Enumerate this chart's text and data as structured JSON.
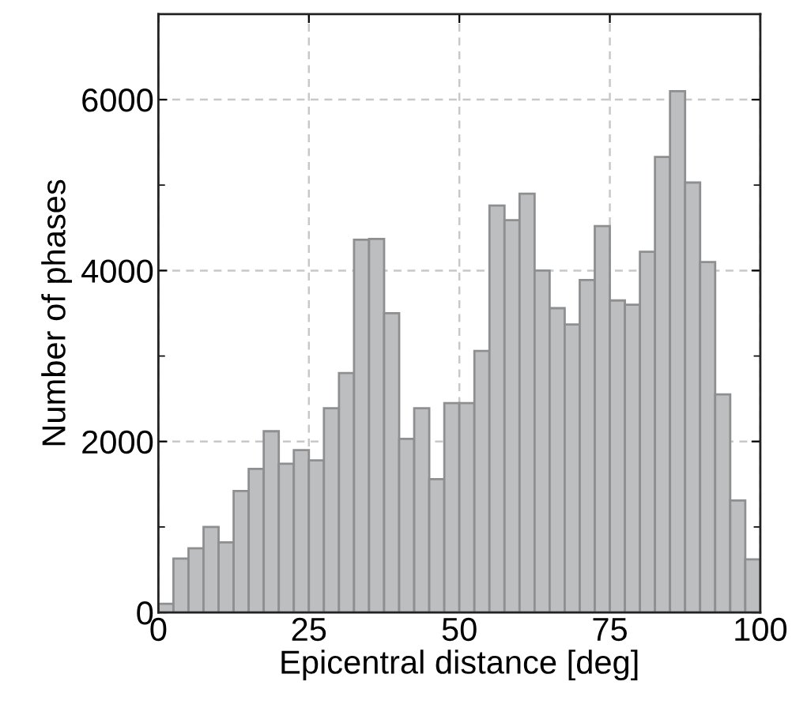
{
  "chart_data": {
    "type": "histogram",
    "xlabel": "Epicentral distance [deg]",
    "ylabel": "Number of phases",
    "bins": [
      0,
      2.5,
      5,
      7.5,
      10,
      12.5,
      15,
      17.5,
      20,
      22.5,
      25,
      27.5,
      30,
      32.5,
      35,
      37.5,
      40,
      42.5,
      45,
      47.5,
      50,
      52.5,
      55,
      57.5,
      60,
      62.5,
      65,
      67.5,
      70,
      72.5,
      75,
      77.5,
      80,
      82.5,
      85,
      87.5,
      90,
      92.5,
      95,
      97.5,
      100
    ],
    "values": [
      100,
      630,
      750,
      1000,
      820,
      1420,
      1680,
      2120,
      1740,
      1900,
      1780,
      2390,
      2800,
      4360,
      4370,
      3500,
      2030,
      2390,
      1560,
      2450,
      2450,
      3060,
      4760,
      4590,
      4900,
      4000,
      3560,
      3370,
      3890,
      4520,
      3650,
      3600,
      4220,
      5330,
      6100,
      5030,
      4100,
      2550,
      1310,
      620
    ],
    "color": "#bdbec0",
    "xlim": [
      0,
      100
    ],
    "xticks": [
      0,
      25,
      50,
      75,
      100
    ],
    "ylim": [
      0,
      7000
    ],
    "yticks": [
      0,
      {
        "value": 1000,
        "label": null
      },
      2000,
      {
        "value": 3000,
        "label": null
      },
      4000,
      {
        "value": 5000,
        "label": null
      },
      6000,
      {
        "value": 7000,
        "label": null
      }
    ],
    "grid": true
  }
}
